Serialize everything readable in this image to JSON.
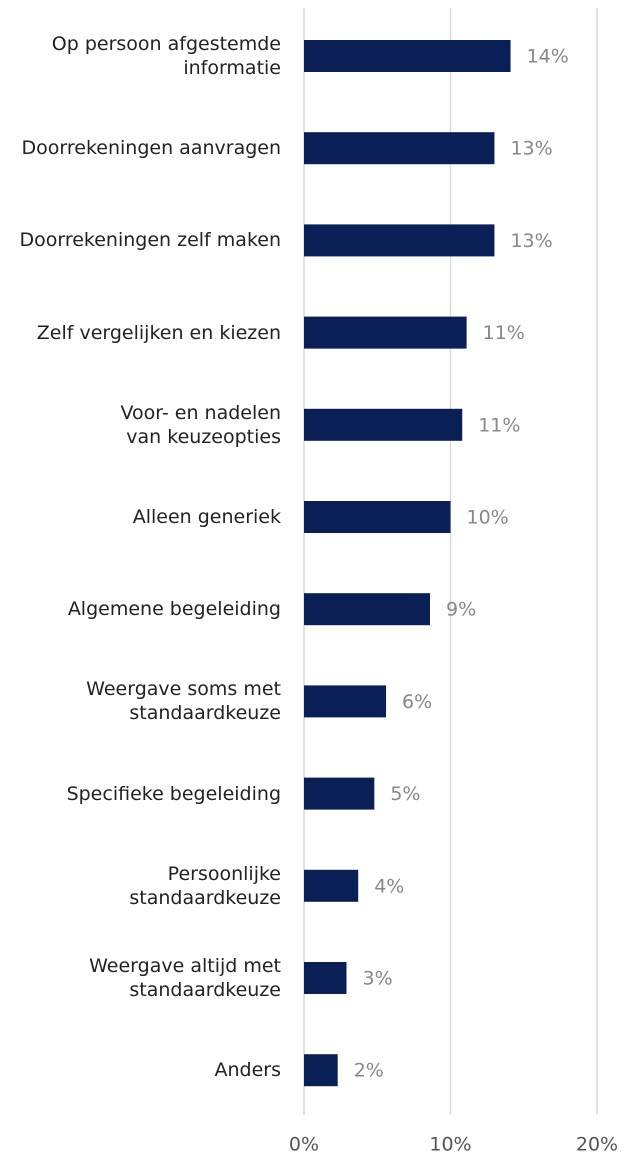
{
  "chart_data": {
    "type": "bar",
    "orientation": "horizontal",
    "categories": [
      "Op persoon afgestemde\ninformatie",
      "Doorrekeningen aanvragen",
      "Doorrekeningen zelf maken",
      "Zelf vergelijken en kiezen",
      "Voor- en nadelen\nvan keuzeopties",
      "Alleen generiek",
      "Algemene begeleiding",
      "Weergave soms met\nstandaardkeuze",
      "Specifieke begeleiding",
      "Persoonlijke\nstandaardkeuze",
      "Weergave altijd met\nstandaardkeuze",
      "Anders"
    ],
    "values": [
      14.1,
      13.0,
      13.0,
      11.1,
      10.8,
      10.0,
      8.6,
      5.6,
      4.8,
      3.7,
      2.9,
      2.3
    ],
    "value_labels": [
      "14%",
      "13%",
      "13%",
      "11%",
      "11%",
      "10%",
      "9%",
      "6%",
      "5%",
      "4%",
      "3%",
      "2%"
    ],
    "color": "#0b1f57",
    "xlim": [
      0,
      20
    ],
    "xticks": [
      {
        "value": 0,
        "label": "0%"
      },
      {
        "value": 10,
        "label": "10%"
      },
      {
        "value": 20,
        "label": "20%"
      }
    ],
    "grid": true
  }
}
